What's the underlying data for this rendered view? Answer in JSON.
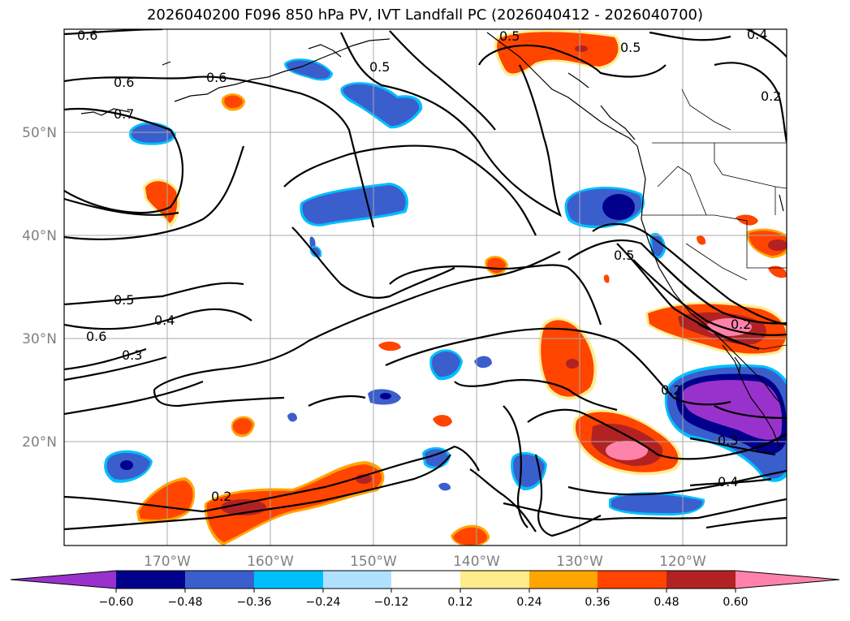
{
  "title": "2026040200 F096 850 hPa PV, IVT Landfall PC (2026040412 - 2026040700)",
  "map": {
    "lon_ticks": [
      "170°W",
      "160°W",
      "150°W",
      "140°W",
      "130°W",
      "120°W"
    ],
    "lat_ticks": [
      "50°N",
      "40°N",
      "30°N",
      "20°N"
    ],
    "contour_labels": [
      "0.6",
      "0.6",
      "0.6",
      "0.7",
      "0.5",
      "0.5",
      "0.4",
      "0.2",
      "0.5",
      "0.5",
      "0.6",
      "0.4",
      "0.3",
      "0.2",
      "0.5",
      "0.3",
      "0.4",
      "0.2",
      "0.2"
    ]
  },
  "colorbar": {
    "labels": [
      "−0.60",
      "−0.48",
      "−0.36",
      "−0.24",
      "−0.12",
      "0.12",
      "0.24",
      "0.36",
      "0.48",
      "0.60"
    ],
    "colors": [
      "#9932cc",
      "#00008b",
      "#3a5fcd",
      "#00bfff",
      "#b0e2ff",
      "#ffffff",
      "#ffec8b",
      "#ffa500",
      "#ff4500",
      "#b22222",
      "#ff82ab"
    ]
  }
}
